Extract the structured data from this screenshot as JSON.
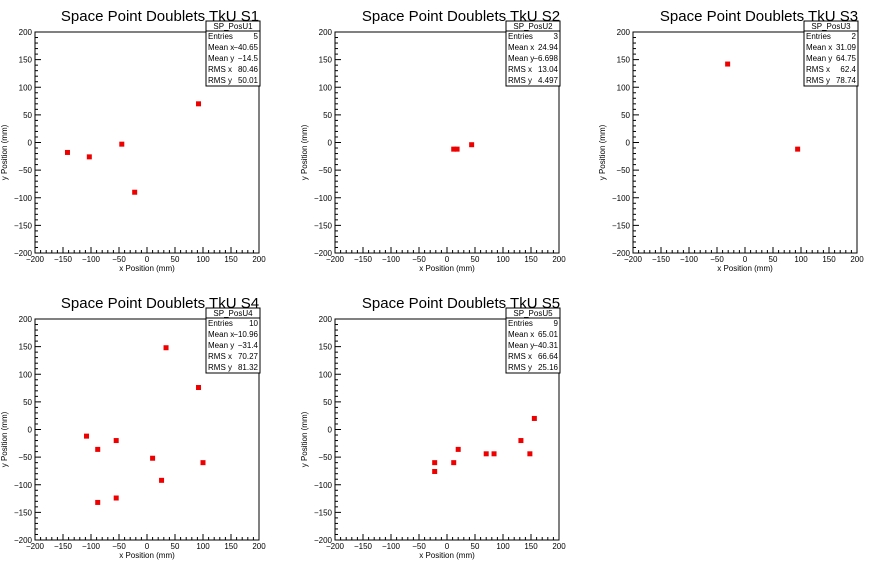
{
  "chart_data": [
    {
      "type": "scatter",
      "title": "Space Point Doublets TkU S1",
      "xlabel": "x Position (mm)",
      "ylabel": "y Position (mm)",
      "xlim": [
        -200,
        200
      ],
      "ylim": [
        -200,
        200
      ],
      "x_ticks": [
        "−200",
        "−150",
        "−100",
        "−50",
        "0",
        "50",
        "100",
        "150",
        "200"
      ],
      "y_ticks": [
        "−200",
        "−150",
        "−100",
        "−50",
        "0",
        "50",
        "100",
        "150",
        "200"
      ],
      "stats": {
        "name": "SP_PosU1",
        "rows": [
          [
            "Entries",
            "5"
          ],
          [
            "Mean x",
            "−40.65"
          ],
          [
            "Mean y",
            "−14.5"
          ],
          [
            "RMS x",
            "80.46"
          ],
          [
            "RMS y",
            "50.01"
          ]
        ]
      },
      "points": [
        {
          "x": -142,
          "y": -18
        },
        {
          "x": -103,
          "y": -26
        },
        {
          "x": -45,
          "y": -3
        },
        {
          "x": -22,
          "y": -90
        },
        {
          "x": 92,
          "y": 70
        }
      ],
      "marker_color": "#ee0000"
    },
    {
      "type": "scatter",
      "title": "Space Point Doublets TkU S2",
      "xlabel": "x Position (mm)",
      "ylabel": "y Position (mm)",
      "xlim": [
        -200,
        200
      ],
      "ylim": [
        -200,
        200
      ],
      "x_ticks": [
        "−200",
        "−150",
        "−100",
        "−50",
        "0",
        "50",
        "100",
        "150",
        "200"
      ],
      "y_ticks": [
        "−200",
        "−150",
        "−100",
        "−50",
        "0",
        "50",
        "100",
        "150",
        "200"
      ],
      "stats": {
        "name": "SP_PosU2",
        "rows": [
          [
            "Entries",
            "3"
          ],
          [
            "Mean x",
            "24.94"
          ],
          [
            "Mean y",
            "−6.698"
          ],
          [
            "RMS x",
            "13.04"
          ],
          [
            "RMS y",
            "4.497"
          ]
        ]
      },
      "points": [
        {
          "x": 12,
          "y": -12
        },
        {
          "x": 18,
          "y": -12
        },
        {
          "x": 44,
          "y": -4
        }
      ],
      "marker_color": "#ee0000"
    },
    {
      "type": "scatter",
      "title": "Space Point Doublets TkU S3",
      "xlabel": "x Position (mm)",
      "ylabel": "y Position (mm)",
      "xlim": [
        -200,
        200
      ],
      "ylim": [
        -200,
        200
      ],
      "x_ticks": [
        "−200",
        "−150",
        "−100",
        "−50",
        "0",
        "50",
        "100",
        "150",
        "200"
      ],
      "y_ticks": [
        "−200",
        "−150",
        "−100",
        "−50",
        "0",
        "50",
        "100",
        "150",
        "200"
      ],
      "stats": {
        "name": "SP_PosU3",
        "rows": [
          [
            "Entries",
            "2"
          ],
          [
            "Mean x",
            "31.09"
          ],
          [
            "Mean y",
            "64.75"
          ],
          [
            "RMS x",
            "62.4"
          ],
          [
            "RMS y",
            "78.74"
          ]
        ]
      },
      "points": [
        {
          "x": -31,
          "y": 142
        },
        {
          "x": 94,
          "y": -12
        }
      ],
      "marker_color": "#ee0000"
    },
    {
      "type": "scatter",
      "title": "Space Point Doublets TkU S4",
      "xlabel": "x Position (mm)",
      "ylabel": "y Position (mm)",
      "xlim": [
        -200,
        200
      ],
      "ylim": [
        -200,
        200
      ],
      "x_ticks": [
        "−200",
        "−150",
        "−100",
        "−50",
        "0",
        "50",
        "100",
        "150",
        "200"
      ],
      "y_ticks": [
        "−200",
        "−150",
        "−100",
        "−50",
        "0",
        "50",
        "100",
        "150",
        "200"
      ],
      "stats": {
        "name": "SP_PosU4",
        "rows": [
          [
            "Entries",
            "10"
          ],
          [
            "Mean x",
            "−10.96"
          ],
          [
            "Mean y",
            "−31.4"
          ],
          [
            "RMS x",
            "70.27"
          ],
          [
            "RMS y",
            "81.32"
          ]
        ]
      },
      "points": [
        {
          "x": -108,
          "y": -12
        },
        {
          "x": -88,
          "y": -36
        },
        {
          "x": -88,
          "y": -132
        },
        {
          "x": -55,
          "y": -20
        },
        {
          "x": -55,
          "y": -124
        },
        {
          "x": 10,
          "y": -52
        },
        {
          "x": 26,
          "y": -92
        },
        {
          "x": 34,
          "y": 148
        },
        {
          "x": 92,
          "y": 76
        },
        {
          "x": 100,
          "y": -60
        }
      ],
      "marker_color": "#ee0000"
    },
    {
      "type": "scatter",
      "title": "Space Point Doublets TkU S5",
      "xlabel": "x Position (mm)",
      "ylabel": "y Position (mm)",
      "xlim": [
        -200,
        200
      ],
      "ylim": [
        -200,
        200
      ],
      "x_ticks": [
        "−200",
        "−150",
        "−100",
        "−50",
        "0",
        "50",
        "100",
        "150",
        "200"
      ],
      "y_ticks": [
        "−200",
        "−150",
        "−100",
        "−50",
        "0",
        "50",
        "100",
        "150",
        "200"
      ],
      "stats": {
        "name": "SP_PosU5",
        "rows": [
          [
            "Entries",
            "9"
          ],
          [
            "Mean x",
            "65.01"
          ],
          [
            "Mean y",
            "−40.31"
          ],
          [
            "RMS x",
            "66.64"
          ],
          [
            "RMS y",
            "25.16"
          ]
        ]
      },
      "points": [
        {
          "x": -22,
          "y": -60
        },
        {
          "x": -22,
          "y": -76
        },
        {
          "x": 12,
          "y": -60
        },
        {
          "x": 20,
          "y": -36
        },
        {
          "x": 70,
          "y": -44
        },
        {
          "x": 84,
          "y": -44
        },
        {
          "x": 132,
          "y": -20
        },
        {
          "x": 148,
          "y": -44
        },
        {
          "x": 156,
          "y": 20
        }
      ],
      "marker_color": "#ee0000"
    }
  ]
}
